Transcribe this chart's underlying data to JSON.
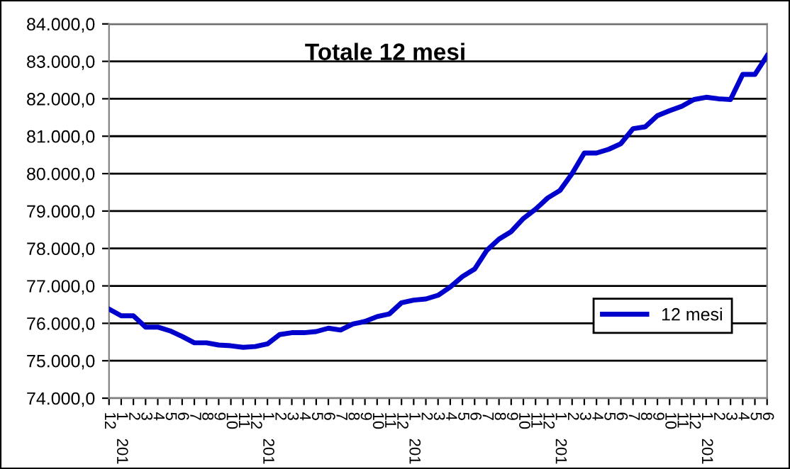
{
  "chart_data": {
    "type": "line",
    "title": "Totale 12 mesi",
    "categories": [
      "12",
      "1    201",
      "2",
      "3",
      "4",
      "5",
      "6",
      "7",
      "8",
      "9",
      "10",
      "11",
      "12",
      "1    201",
      "2",
      "3",
      "4",
      "5",
      "6",
      "7",
      "8",
      "9",
      "10",
      "11",
      "12",
      "1    201",
      "2",
      "3",
      "4",
      "5",
      "6",
      "7",
      "8",
      "9",
      "10",
      "11",
      "12",
      "1    201",
      "2",
      "3",
      "4",
      "5",
      "6",
      "7",
      "8",
      "9",
      "10",
      "11",
      "12",
      "1    201",
      "2",
      "3",
      "4",
      "5",
      "6"
    ],
    "series": [
      {
        "name": "12 mesi",
        "color": "#0000cc",
        "values": [
          76380,
          76200,
          76200,
          75900,
          75900,
          75800,
          75650,
          75480,
          75480,
          75420,
          75400,
          75360,
          75380,
          75450,
          75700,
          75750,
          75750,
          75780,
          75870,
          75820,
          75980,
          76050,
          76180,
          76250,
          76550,
          76620,
          76650,
          76750,
          76970,
          77250,
          77450,
          77950,
          78250,
          78450,
          78800,
          79050,
          79350,
          79550,
          80000,
          80550,
          80550,
          80650,
          80800,
          81200,
          81250,
          81550,
          81680,
          81800,
          81980,
          82040,
          82000,
          81980,
          82650,
          82650,
          83150
        ]
      }
    ],
    "ylim": [
      74000,
      84000
    ],
    "yticks": [
      {
        "value": 74000,
        "label": "74.000,0"
      },
      {
        "value": 75000,
        "label": "75.000,0"
      },
      {
        "value": 76000,
        "label": "76.000,0"
      },
      {
        "value": 77000,
        "label": "77.000,0"
      },
      {
        "value": 78000,
        "label": "78.000,0"
      },
      {
        "value": 79000,
        "label": "79.000,0"
      },
      {
        "value": 80000,
        "label": "80.000,0"
      },
      {
        "value": 81000,
        "label": "81.000,0"
      },
      {
        "value": 82000,
        "label": "82.000,0"
      },
      {
        "value": 83000,
        "label": "83.000,0"
      },
      {
        "value": 84000,
        "label": "84.000,0"
      }
    ],
    "grid": "y",
    "legend": "right",
    "marker": "none",
    "line_style": "solid"
  }
}
